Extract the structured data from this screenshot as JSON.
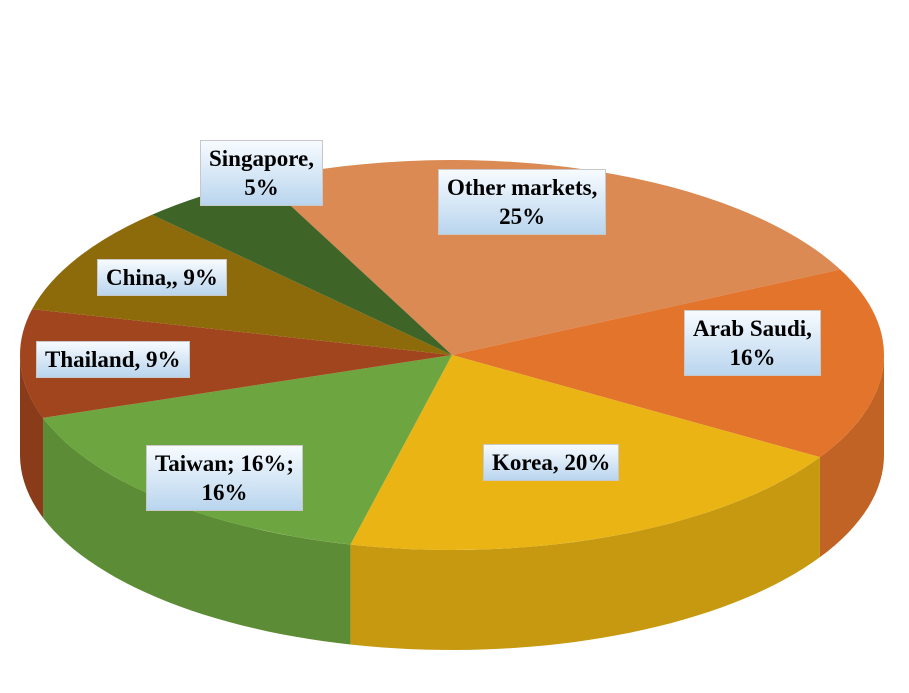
{
  "chart_data": {
    "type": "pie",
    "style": "3d",
    "categories": [
      "Other markets",
      "Arab Saudi",
      "Korea",
      "Taiwan",
      "Thailand",
      "China",
      "Singapore"
    ],
    "values": [
      25,
      16,
      20,
      16,
      9,
      9,
      5
    ],
    "unit": "%",
    "data_labels": [
      "Other markets,\n25%",
      "Arab Saudi,\n16%",
      "Korea, 20%",
      "Taiwan; 16%;\n16%",
      "Thailand, 9%",
      "China,, 9%",
      "Singapore,\n5%"
    ],
    "colors": [
      "#DA8A52",
      "#E2742C",
      "#E9B414",
      "#6DA540",
      "#A1451E",
      "#8E6B0A",
      "#3F6428"
    ],
    "legend": "none"
  }
}
